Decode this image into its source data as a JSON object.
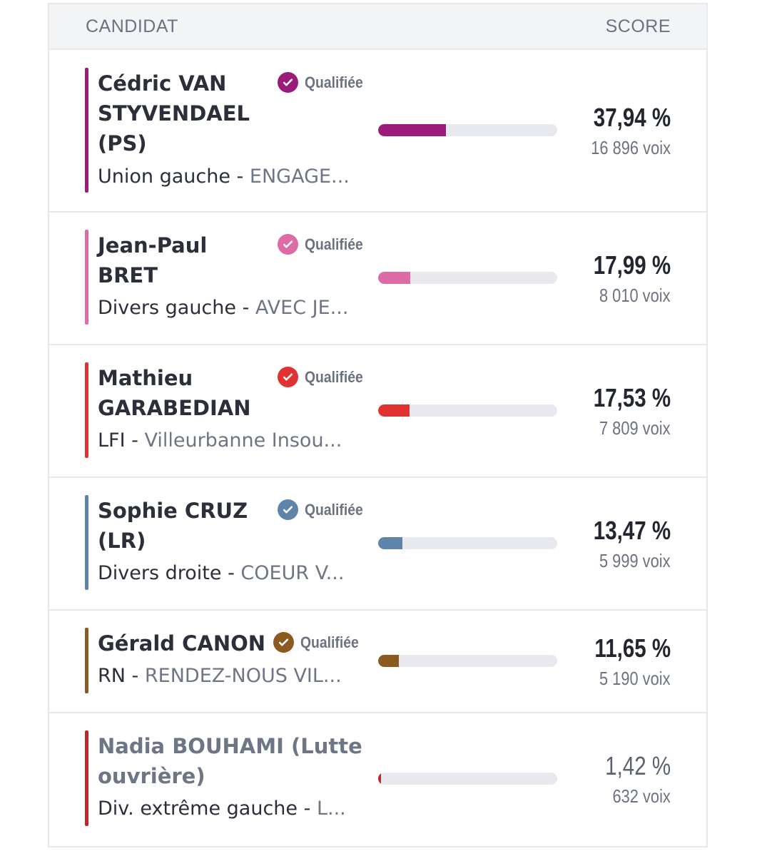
{
  "header": {
    "candidate": "CANDIDAT",
    "score": "SCORE"
  },
  "candidates": [
    {
      "name": "Cédric VAN STYVENDAEL (PS)",
      "name_lines": [
        "Cédric VAN",
        "STYVENDAEL",
        "(PS)"
      ],
      "qualified_label": "Qualifiée",
      "nuance": "Union gauche",
      "list": "ENGAGE...",
      "percent": "37,94 %",
      "votes": "16 896 voix",
      "share": 37.94,
      "color": "#9b1b7a"
    },
    {
      "name": "Jean-Paul BRET",
      "name_lines": [
        "Jean-Paul",
        "BRET"
      ],
      "qualified_label": "Qualifiée",
      "nuance": "Divers gauche",
      "list": "AVEC JE...",
      "percent": "17,99 %",
      "votes": "8 010 voix",
      "share": 17.99,
      "color": "#de6aa6"
    },
    {
      "name": "Mathieu GARABEDIAN",
      "name_lines": [
        "Mathieu",
        "GARABEDIAN"
      ],
      "qualified_label": "Qualifiée",
      "nuance": "LFI",
      "list": "Villeurbanne Insou...",
      "percent": "17,53 %",
      "votes": "7 809 voix",
      "share": 17.53,
      "color": "#e03232"
    },
    {
      "name": "Sophie CRUZ (LR)",
      "name_lines": [
        "Sophie CRUZ",
        "(LR)"
      ],
      "qualified_label": "Qualifiée",
      "nuance": "Divers droite",
      "list": "COEUR V...",
      "percent": "13,47 %",
      "votes": "5 999 voix",
      "share": 13.47,
      "color": "#5f84aa"
    },
    {
      "name": "Gérald CANON",
      "name_lines": [
        "Gérald CANON"
      ],
      "qualified_label": "Qualifiée",
      "nuance": "RN",
      "list": "RENDEZ-NOUS VIL...",
      "percent": "11,65 %",
      "votes": "5 190 voix",
      "share": 11.65,
      "color": "#8a5a20"
    },
    {
      "name": "Nadia BOUHAMI (Lutte ouvrière)",
      "name_lines": [
        "Nadia BOUHAMI (Lutte",
        "ouvrière)"
      ],
      "qualified_label": "",
      "nuance": "Div. extrême gauche",
      "list": "L...",
      "percent": "1,42 %",
      "votes": "632 voix",
      "share": 1.42,
      "color": "#c0272d"
    }
  ]
}
